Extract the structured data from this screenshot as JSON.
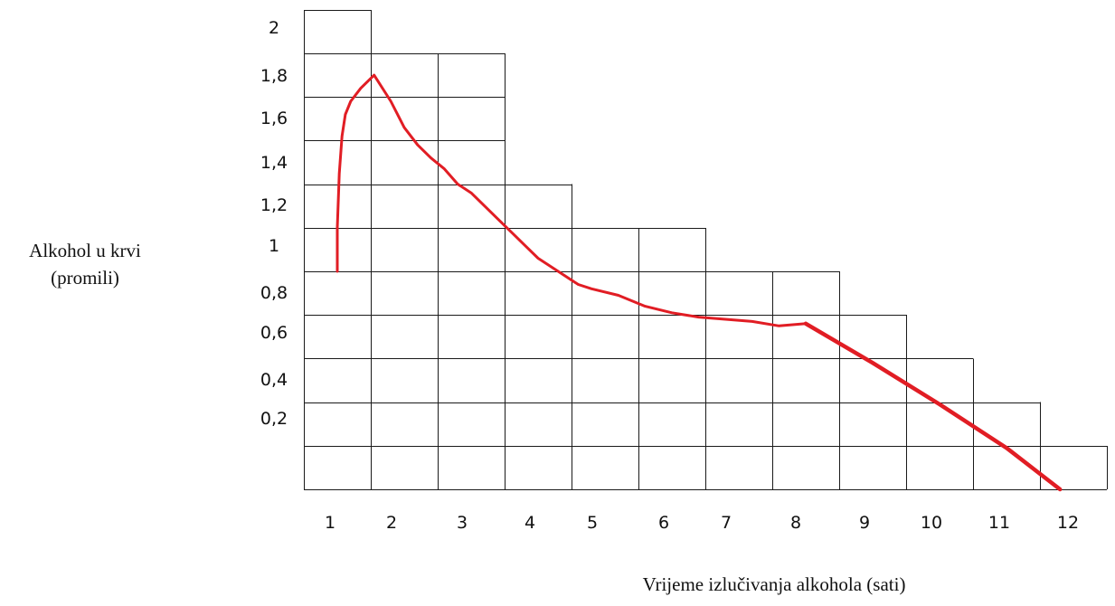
{
  "chart_data": {
    "type": "line",
    "ylabel": [
      "Alkohol u krvi",
      "(promili)"
    ],
    "xlabel": "Vrijeme izlučivanja alkohola (sati)",
    "x_ticks": [
      "1",
      "2",
      "3",
      "4",
      "5",
      "6",
      "7",
      "8",
      "9",
      "10",
      "11",
      "12"
    ],
    "y_ticks": [
      "2",
      "1,8",
      "1,6",
      "1,4",
      "1,2",
      "1",
      "0,8",
      "0,6",
      "0,4",
      "0,2"
    ],
    "y_tick_values": [
      2.0,
      1.8,
      1.6,
      1.4,
      1.2,
      1.0,
      0.8,
      0.6,
      0.4,
      0.2
    ],
    "series": [
      {
        "color": "#e11d24",
        "x": [
          1.0,
          1.0,
          1.03,
          1.07,
          1.12,
          1.2,
          1.35,
          1.55,
          1.8,
          2.0,
          2.2,
          2.4,
          2.6,
          2.8,
          3.0,
          3.2,
          3.4,
          3.6,
          3.8,
          4.0,
          4.3,
          4.6,
          4.8,
          5.2,
          5.6,
          6.0,
          6.4,
          6.8,
          7.2,
          7.6,
          8.0,
          9.0,
          10.0,
          11.0,
          11.8
        ],
        "y": [
          1.0,
          1.2,
          1.45,
          1.62,
          1.72,
          1.78,
          1.84,
          1.9,
          1.78,
          1.66,
          1.58,
          1.52,
          1.47,
          1.4,
          1.36,
          1.3,
          1.24,
          1.18,
          1.12,
          1.06,
          1.0,
          0.94,
          0.92,
          0.89,
          0.84,
          0.81,
          0.79,
          0.78,
          0.77,
          0.75,
          0.76,
          0.58,
          0.39,
          0.19,
          0.0
        ]
      }
    ],
    "grid": true
  }
}
